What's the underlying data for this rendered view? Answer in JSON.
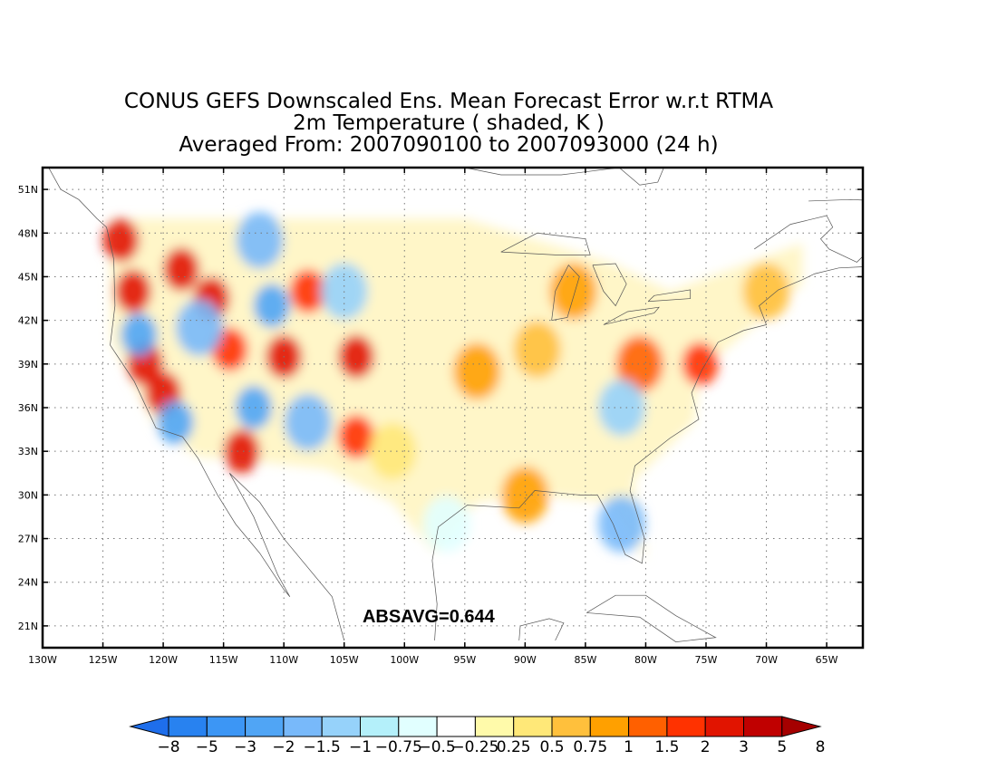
{
  "title": {
    "line1": "CONUS GEFS Downscaled Ens. Mean Forecast Error w.r.t RTMA",
    "line2": "2m Temperature ( shaded, K )",
    "line3": "Averaged From: 2007090100 to 2007093000 (24 h)"
  },
  "map": {
    "lon_range": [
      -130,
      -62
    ],
    "lat_range": [
      19.5,
      52.5
    ],
    "lon_ticks": [
      "130W",
      "125W",
      "120W",
      "115W",
      "110W",
      "105W",
      "100W",
      "95W",
      "90W",
      "85W",
      "80W",
      "75W",
      "70W",
      "65W"
    ],
    "lon_tick_values": [
      -130,
      -125,
      -120,
      -115,
      -110,
      -105,
      -100,
      -95,
      -90,
      -85,
      -80,
      -75,
      -70,
      -65
    ],
    "lat_ticks": [
      "21N",
      "24N",
      "27N",
      "30N",
      "33N",
      "36N",
      "39N",
      "42N",
      "45N",
      "48N",
      "51N"
    ],
    "lat_tick_values": [
      21,
      24,
      27,
      30,
      33,
      36,
      39,
      42,
      45,
      48,
      51
    ],
    "grid": true,
    "annotation": "ABSAVG=0.644",
    "annotation_position": [
      -98,
      21.5
    ]
  },
  "colorbar": {
    "labels": [
      "−8",
      "−5",
      "−3",
      "−2",
      "−1.5",
      "−1",
      "−0.75",
      "−0.5",
      "−0.25",
      "0.25",
      "0.5",
      "0.75",
      "1",
      "1.5",
      "2",
      "3",
      "5",
      "8"
    ],
    "colors": [
      "#1e6eeb",
      "#2882f0",
      "#3c96f5",
      "#50a5f5",
      "#78b9fa",
      "#96d2fa",
      "#b4f0fa",
      "#e1ffff",
      "#ffffff",
      "#fffaaa",
      "#ffe878",
      "#ffc03c",
      "#ffa000",
      "#ff6000",
      "#ff3200",
      "#e11400",
      "#c00000",
      "#a50000"
    ],
    "under_color": "#1e6eeb",
    "over_color": "#a50000"
  },
  "chart_data": {
    "type": "heatmap",
    "title": "CONUS GEFS Downscaled Ens. Mean Forecast Error w.r.t RTMA",
    "variable": "2m Temperature ( shaded, K )",
    "period": "Averaged From: 2007090100 to 2007093000 (24 h)",
    "x_range": [
      -130,
      -62
    ],
    "y_range": [
      19.5,
      52.5
    ],
    "levels": [
      -8,
      -5,
      -3,
      -2,
      -1.5,
      -1,
      -0.75,
      -0.5,
      -0.25,
      0.25,
      0.5,
      0.75,
      1,
      1.5,
      2,
      3,
      5,
      8
    ],
    "summary": {
      "ABSAVG": 0.644
    },
    "regions": [
      {
        "lon": -123.5,
        "lat": 47.5,
        "value": 4
      },
      {
        "lon": -122.5,
        "lat": 44,
        "value": 3
      },
      {
        "lon": -121.5,
        "lat": 39,
        "value": 4
      },
      {
        "lon": -120,
        "lat": 37,
        "value": 3
      },
      {
        "lon": -118.5,
        "lat": 45.5,
        "value": 3
      },
      {
        "lon": -116,
        "lat": 43.5,
        "value": 3
      },
      {
        "lon": -114.5,
        "lat": 40,
        "value": 2
      },
      {
        "lon": -113.5,
        "lat": 33,
        "value": 3
      },
      {
        "lon": -110,
        "lat": 39.5,
        "value": 3
      },
      {
        "lon": -108,
        "lat": 44,
        "value": 2
      },
      {
        "lon": -104,
        "lat": 39.5,
        "value": 3
      },
      {
        "lon": -104,
        "lat": 34,
        "value": 2
      },
      {
        "lon": -122,
        "lat": 41,
        "value": -2
      },
      {
        "lon": -119,
        "lat": 35,
        "value": -2
      },
      {
        "lon": -117,
        "lat": 41.5,
        "value": -1.5
      },
      {
        "lon": -112.5,
        "lat": 36,
        "value": -2
      },
      {
        "lon": -111,
        "lat": 43,
        "value": -2
      },
      {
        "lon": -108,
        "lat": 35,
        "value": -1.5
      },
      {
        "lon": -112,
        "lat": 47.5,
        "value": -1.5
      },
      {
        "lon": -105,
        "lat": 44,
        "value": -1
      },
      {
        "lon": -94,
        "lat": 38.5,
        "value": 1
      },
      {
        "lon": -89,
        "lat": 40,
        "value": 0.75
      },
      {
        "lon": -86,
        "lat": 44,
        "value": 1
      },
      {
        "lon": -80.5,
        "lat": 39,
        "value": 1.5
      },
      {
        "lon": -75.5,
        "lat": 39,
        "value": 2
      },
      {
        "lon": -70,
        "lat": 44,
        "value": 0.75
      },
      {
        "lon": -90,
        "lat": 30,
        "value": 1
      },
      {
        "lon": -82,
        "lat": 28,
        "value": -1.5
      },
      {
        "lon": -82,
        "lat": 36,
        "value": -1
      },
      {
        "lon": -96.5,
        "lat": 28,
        "value": -0.5
      },
      {
        "lon": -101,
        "lat": 33,
        "value": 0.5
      }
    ]
  }
}
